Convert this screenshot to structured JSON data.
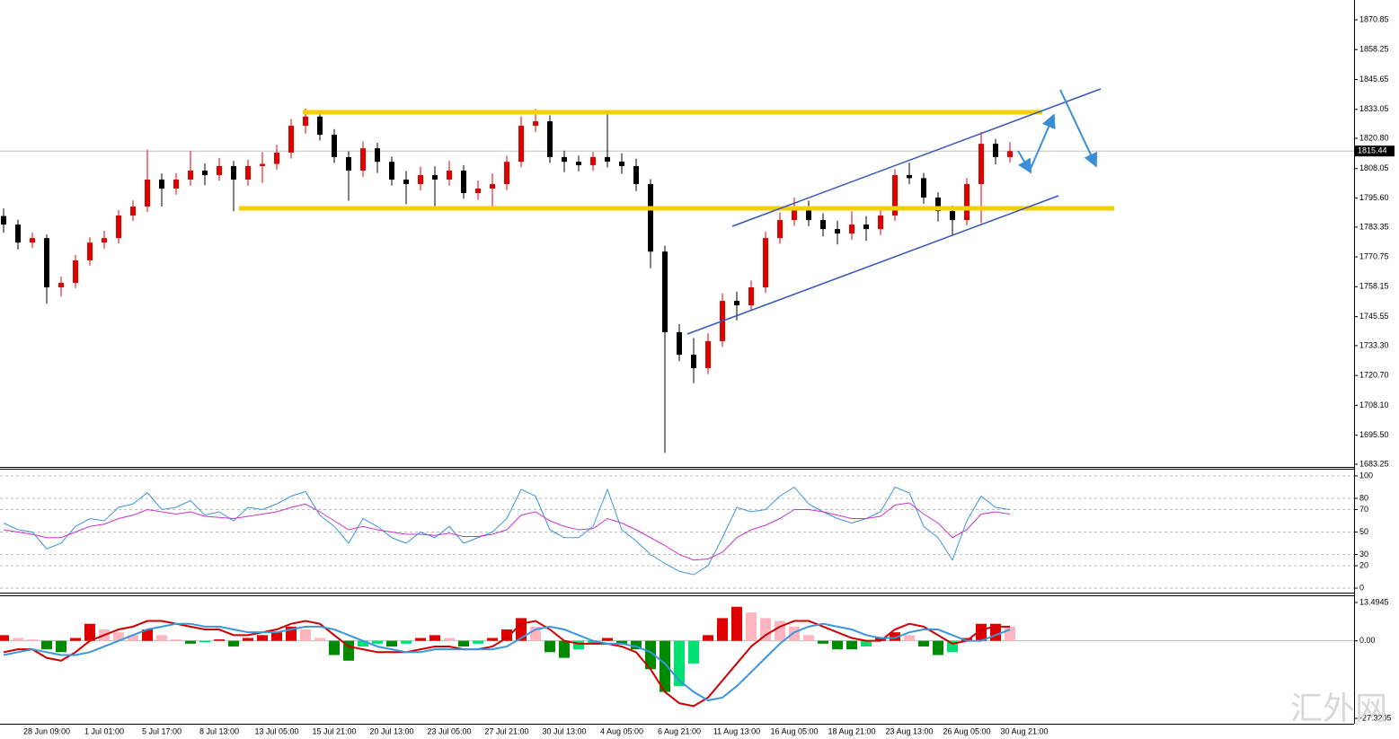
{
  "chart_data": [
    {
      "type": "candlestick",
      "xtick_labels": [
        "28 Jun 09:00",
        "1 Jul 01:00",
        "5 Jul 17:00",
        "8 Jul 13:00",
        "13 Jul 05:00",
        "15 Jul 21:00",
        "20 Jul 13:00",
        "23 Jul 05:00",
        "27 Jul 21:00",
        "30 Jul 13:00",
        "4 Aug 05:00",
        "6 Aug 21:00",
        "11 Aug 13:00",
        "16 Aug 05:00",
        "18 Aug 21:00",
        "23 Aug 13:00",
        "26 Aug 05:00",
        "30 Aug 21:00"
      ],
      "open": [
        1788.0,
        1784.4,
        1776.8,
        1778.7,
        1757.9,
        1759.8,
        1769.3,
        1776.8,
        1778.7,
        1788.2,
        1792.0,
        1803.4,
        1799.6,
        1803.4,
        1807.2,
        1805.3,
        1809.1,
        1803.4,
        1809.1,
        1810.0,
        1814.8,
        1826.1,
        1830.0,
        1822.3,
        1812.9,
        1807.2,
        1816.6,
        1810.9,
        1803.4,
        1801.5,
        1805.3,
        1803.4,
        1807.2,
        1797.7,
        1799.6,
        1801.5,
        1810.9,
        1826.1,
        1828.0,
        1812.9,
        1810.9,
        1809.5,
        1812.9,
        1811.0,
        1809.1,
        1801.5,
        1773.0,
        1739.0,
        1729.5,
        1723.8,
        1735.2,
        1752.2,
        1750.3,
        1757.9,
        1778.7,
        1786.3,
        1792.0,
        1786.3,
        1782.5,
        1780.6,
        1784.4,
        1782.5,
        1788.2,
        1805.3,
        1804.0,
        1795.8,
        1790.1,
        1786.3,
        1801.5,
        1818.5,
        1812.9
      ],
      "high": [
        1791.2,
        1786.5,
        1781.0,
        1780.2,
        1762.5,
        1771.5,
        1779.0,
        1781.8,
        1790.5,
        1794.6,
        1816.0,
        1806.0,
        1806.1,
        1815.5,
        1810.2,
        1812.5,
        1811.3,
        1811.8,
        1815.0,
        1818.1,
        1829.0,
        1833.5,
        1832.0,
        1824.7,
        1815.3,
        1819.5,
        1819.0,
        1813.1,
        1807.0,
        1808.8,
        1809.0,
        1811.3,
        1809.5,
        1803.0,
        1806.0,
        1813.5,
        1830.0,
        1833.2,
        1830.5,
        1815.6,
        1813.5,
        1815.0,
        1831.0,
        1814.5,
        1812.2,
        1803.6,
        1775.5,
        1742.4,
        1736.5,
        1738.5,
        1755.4,
        1756.1,
        1760.8,
        1781.4,
        1789.5,
        1795.8,
        1794.5,
        1789.2,
        1786.0,
        1790.0,
        1788.0,
        1791.0,
        1807.8,
        1810.5,
        1806.2,
        1798.0,
        1792.4,
        1804.0,
        1823.5,
        1820.6,
        1819.2
      ],
      "low": [
        1781.0,
        1773.9,
        1774.5,
        1751.0,
        1754.0,
        1757.6,
        1767.1,
        1774.2,
        1776.4,
        1785.9,
        1789.7,
        1792.0,
        1797.0,
        1800.8,
        1801.0,
        1802.9,
        1790.0,
        1800.8,
        1802.0,
        1807.6,
        1812.3,
        1822.8,
        1819.9,
        1810.4,
        1794.5,
        1804.6,
        1806.2,
        1800.9,
        1793.0,
        1798.9,
        1790.5,
        1800.9,
        1795.3,
        1794.8,
        1792.0,
        1799.0,
        1808.6,
        1823.5,
        1810.4,
        1806.5,
        1806.9,
        1807.1,
        1808.5,
        1805.8,
        1798.5,
        1766.0,
        1688.0,
        1726.8,
        1717.5,
        1721.3,
        1732.8,
        1744.0,
        1747.9,
        1755.6,
        1776.3,
        1783.9,
        1783.8,
        1779.4,
        1776.0,
        1778.0,
        1777.5,
        1780.0,
        1786.0,
        1801.5,
        1793.2,
        1785.7,
        1780.0,
        1784.0,
        1785.0,
        1809.8,
        1810.6
      ],
      "close": [
        1784.4,
        1776.8,
        1778.7,
        1757.9,
        1759.8,
        1769.3,
        1776.8,
        1778.7,
        1788.2,
        1792.0,
        1803.4,
        1799.6,
        1803.4,
        1807.2,
        1805.3,
        1809.1,
        1803.4,
        1809.1,
        1810.0,
        1814.8,
        1826.1,
        1830.0,
        1822.3,
        1812.9,
        1807.2,
        1816.6,
        1810.9,
        1803.4,
        1801.5,
        1805.3,
        1803.4,
        1807.2,
        1797.7,
        1799.6,
        1801.5,
        1810.9,
        1826.1,
        1828.0,
        1812.9,
        1810.9,
        1809.5,
        1812.9,
        1811.0,
        1809.1,
        1801.5,
        1773.0,
        1739.0,
        1729.5,
        1723.8,
        1735.2,
        1752.2,
        1750.3,
        1757.9,
        1778.7,
        1786.3,
        1792.0,
        1786.3,
        1782.5,
        1780.6,
        1784.4,
        1782.5,
        1788.2,
        1805.3,
        1804.0,
        1795.8,
        1790.1,
        1786.3,
        1801.5,
        1818.5,
        1812.9,
        1815.4
      ],
      "up_color": "#e00000",
      "down_color": "#000000",
      "last_price": 1815.44,
      "ylim": [
        1682.1,
        1879.2
      ],
      "yticks": [
        1870.85,
        1858.25,
        1845.65,
        1833.05,
        {
          "value": 1820.8,
          "label": "1820.80"
        },
        1808.05,
        {
          "value": 1795.6,
          "label": "1795.60"
        },
        1783.35,
        1770.75,
        1758.15,
        1745.55,
        {
          "value": 1733.3,
          "label": "1733.30"
        },
        {
          "value": 1720.7,
          "label": "1720.70"
        },
        {
          "value": 1708.1,
          "label": "1708.10"
        },
        {
          "value": 1695.5,
          "label": "1695.50"
        },
        1683.25
      ],
      "watermark": "汇外网"
    },
    {
      "type": "line",
      "series": [
        {
          "color": "#3a96dd",
          "values": [
            58,
            52,
            50,
            35,
            40,
            55,
            62,
            60,
            72,
            75,
            85,
            70,
            72,
            78,
            65,
            68,
            60,
            72,
            70,
            75,
            82,
            86,
            65,
            55,
            40,
            62,
            55,
            45,
            40,
            50,
            45,
            55,
            40,
            45,
            50,
            62,
            88,
            82,
            52,
            45,
            45,
            55,
            88,
            52,
            42,
            30,
            22,
            15,
            12,
            20,
            45,
            72,
            68,
            70,
            82,
            90,
            75,
            68,
            62,
            58,
            62,
            68,
            90,
            85,
            55,
            45,
            25,
            60,
            82,
            72,
            70
          ]
        },
        {
          "color": "#cc33cc",
          "values": [
            52,
            50,
            48,
            45,
            45,
            50,
            55,
            57,
            62,
            65,
            70,
            68,
            66,
            68,
            64,
            63,
            62,
            64,
            66,
            68,
            72,
            75,
            68,
            60,
            52,
            55,
            52,
            50,
            48,
            48,
            47,
            49,
            46,
            46,
            48,
            52,
            65,
            68,
            60,
            55,
            52,
            53,
            62,
            58,
            52,
            45,
            38,
            30,
            25,
            26,
            32,
            45,
            52,
            56,
            62,
            70,
            70,
            68,
            65,
            62,
            62,
            64,
            74,
            76,
            66,
            58,
            45,
            52,
            66,
            68,
            66
          ]
        }
      ],
      "ylim": [
        -4,
        106.4
      ],
      "yticks": [
        100,
        80,
        70,
        50,
        30,
        20,
        0
      ],
      "grid": true
    },
    {
      "type": "macd",
      "histogram": {
        "colors": [
          "#e00000",
          "#ffb6c1",
          "#008a00",
          "#00e070"
        ],
        "values": [
          2,
          1,
          0.5,
          -3,
          -4,
          1,
          6,
          4,
          3,
          2,
          4,
          2,
          0.5,
          -1,
          -0.5,
          0.5,
          -2,
          1,
          2,
          3,
          5,
          4,
          1,
          -5,
          -7,
          -2,
          -1,
          -2,
          -1,
          1,
          2,
          1,
          -2,
          -1,
          1,
          4,
          8,
          5,
          -4,
          -6,
          -3,
          -1,
          1,
          -1,
          -3,
          -10,
          -18,
          -16,
          -8,
          2,
          8,
          12,
          10,
          8,
          7,
          5,
          2,
          -1,
          -3,
          -3,
          -2,
          1,
          3,
          2,
          -2,
          -5,
          -4,
          1,
          6,
          6,
          5
        ]
      },
      "series": [
        {
          "color": "#cc0000",
          "values": [
            -4,
            -3,
            -3,
            -6,
            -7,
            -4,
            0,
            2,
            4,
            5,
            7,
            7,
            6,
            5,
            4,
            4,
            2,
            2,
            3,
            4,
            6,
            7,
            6,
            2,
            -2,
            -3,
            -4,
            -4,
            -4,
            -3,
            -2,
            -2,
            -3,
            -3,
            -2,
            1,
            6,
            7,
            4,
            0,
            -1,
            -1,
            -1,
            -2,
            -4,
            -10,
            -18,
            -22,
            -23,
            -20,
            -14,
            -8,
            -2,
            2,
            5,
            7,
            7,
            5,
            3,
            1,
            0,
            0,
            4,
            6,
            5,
            2,
            -1,
            0,
            4,
            5,
            5
          ]
        },
        {
          "color": "#3a96dd",
          "values": [
            -5,
            -4,
            -3,
            -4,
            -5,
            -5,
            -4,
            -2,
            0,
            2,
            4,
            5,
            6,
            6,
            5,
            5,
            4,
            3,
            3,
            3,
            4,
            5,
            5,
            4,
            2,
            0,
            -2,
            -3,
            -4,
            -4,
            -3,
            -3,
            -3,
            -3,
            -3,
            -2,
            1,
            4,
            5,
            4,
            2,
            0,
            -1,
            -1,
            -2,
            -4,
            -8,
            -14,
            -18,
            -21,
            -20,
            -16,
            -11,
            -6,
            -1,
            3,
            5,
            6,
            5,
            4,
            2,
            1,
            1,
            3,
            4,
            4,
            2,
            0,
            0,
            2,
            4
          ]
        }
      ],
      "ylim": [
        -29.22,
        16.03
      ],
      "yticks": [
        13.4945,
        {
          "value": 0,
          "label": "0.00"
        },
        -27.3205
      ]
    }
  ]
}
